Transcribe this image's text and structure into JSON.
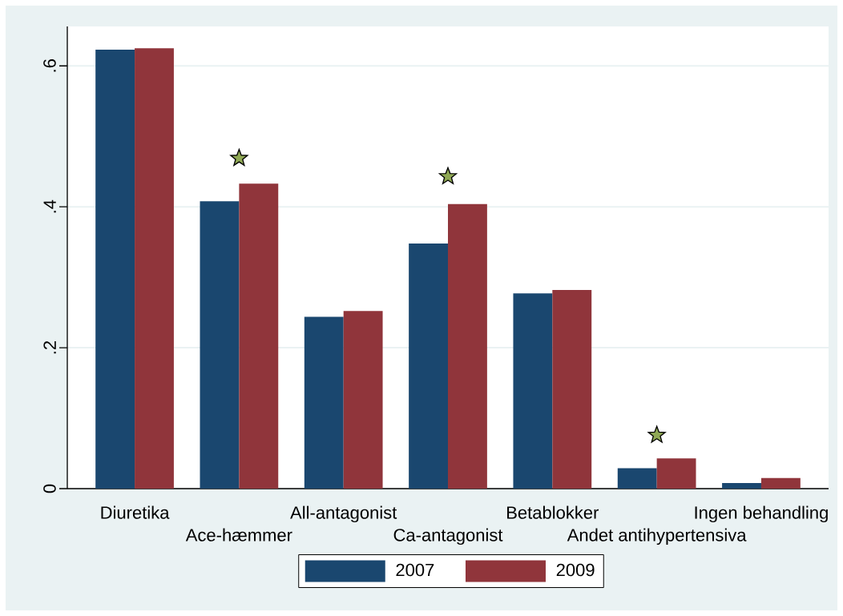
{
  "chart_data": {
    "type": "bar",
    "categories": [
      "Diuretika",
      "Ace-hæmmer",
      "All-antagonist",
      "Ca-antagonist",
      "Betablokker",
      "Andet antihypertensiva",
      "Ingen behandling"
    ],
    "series": [
      {
        "name": "2007",
        "color": "#1a476f",
        "values": [
          0.623,
          0.408,
          0.244,
          0.348,
          0.277,
          0.029,
          0.008
        ]
      },
      {
        "name": "2009",
        "color": "#90353b",
        "values": [
          0.625,
          0.433,
          0.252,
          0.404,
          0.282,
          0.043,
          0.015
        ]
      },
      {
        "type": "scatter",
        "x": [
          "Ace-hæmmer",
          "Ca-antagonist",
          "Andet antihypertensiva"
        ],
        "values": [
          0.469,
          0.443,
          0.076
        ],
        "color": "#90a955",
        "marker": "star"
      }
    ],
    "ylim": [
      0,
      0.656
    ],
    "yticks": [
      0,
      {
        "value": 0.2,
        "label": ".2"
      },
      {
        "value": 0.4,
        "label": ".4"
      },
      {
        "value": 0.6,
        "label": ".6"
      }
    ],
    "grid": "y",
    "legend": "bottom"
  }
}
